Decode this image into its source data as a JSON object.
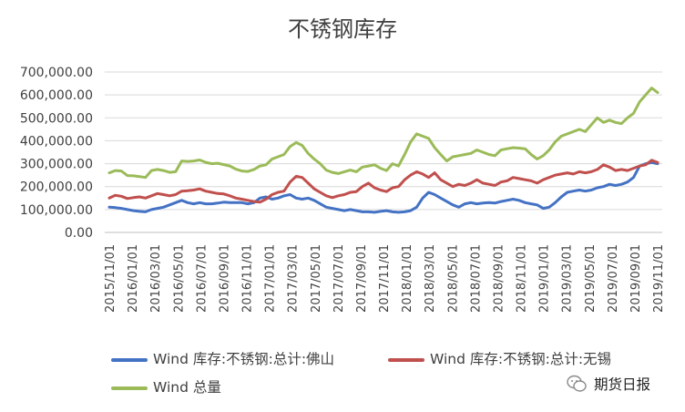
{
  "chart_data": {
    "type": "line",
    "title": "不锈钢库存",
    "xlabel": "",
    "ylabel": "",
    "ylim": [
      0,
      700000
    ],
    "y_ticks": [
      "0.00",
      "100,000.00",
      "200,000.00",
      "300,000.00",
      "400,000.00",
      "500,000.00",
      "600,000.00",
      "700,000.00"
    ],
    "x_tick_labels": [
      "2015/11/01",
      "2016/01/01",
      "2016/03/01",
      "2016/05/01",
      "2016/07/01",
      "2016/09/01",
      "2016/11/01",
      "2017/01/01",
      "2017/03/01",
      "2017/05/01",
      "2017/07/01",
      "2017/09/01",
      "2017/11/01",
      "2018/01/01",
      "2018/03/01",
      "2018/05/01",
      "2018/07/01",
      "2018/09/01",
      "2018/11/01",
      "2019/01/01",
      "2019/03/01",
      "2019/05/01",
      "2019/07/01",
      "2019/09/01",
      "2019/11/01"
    ],
    "grid": true,
    "legend_position": "bottom",
    "series": [
      {
        "name": "Wind 库存:不锈钢:总计:佛山",
        "color": "#4472C4",
        "values": [
          110000,
          108000,
          105000,
          100000,
          95000,
          92000,
          90000,
          100000,
          105000,
          110000,
          120000,
          130000,
          140000,
          130000,
          125000,
          130000,
          125000,
          125000,
          128000,
          132000,
          130000,
          130000,
          130000,
          125000,
          130000,
          150000,
          155000,
          145000,
          150000,
          160000,
          165000,
          150000,
          145000,
          150000,
          140000,
          125000,
          110000,
          105000,
          100000,
          95000,
          100000,
          95000,
          90000,
          90000,
          88000,
          92000,
          95000,
          90000,
          88000,
          90000,
          95000,
          110000,
          150000,
          175000,
          165000,
          150000,
          135000,
          120000,
          110000,
          125000,
          130000,
          125000,
          128000,
          130000,
          128000,
          135000,
          140000,
          145000,
          140000,
          130000,
          125000,
          120000,
          105000,
          110000,
          130000,
          155000,
          175000,
          180000,
          185000,
          180000,
          185000,
          195000,
          200000,
          210000,
          205000,
          210000,
          220000,
          240000,
          290000,
          300000,
          305000,
          300000
        ]
      },
      {
        "name": "Wind 库存:不锈钢:总计:无锡",
        "color": "#C0504D",
        "values": [
          150000,
          162000,
          158000,
          148000,
          152000,
          155000,
          150000,
          160000,
          170000,
          165000,
          160000,
          165000,
          180000,
          182000,
          185000,
          190000,
          180000,
          175000,
          170000,
          168000,
          160000,
          150000,
          145000,
          140000,
          135000,
          132000,
          145000,
          165000,
          175000,
          180000,
          220000,
          245000,
          240000,
          215000,
          190000,
          175000,
          160000,
          152000,
          160000,
          165000,
          175000,
          178000,
          200000,
          215000,
          195000,
          185000,
          178000,
          195000,
          200000,
          230000,
          250000,
          265000,
          255000,
          240000,
          260000,
          230000,
          215000,
          200000,
          210000,
          205000,
          215000,
          230000,
          215000,
          210000,
          205000,
          220000,
          225000,
          240000,
          235000,
          230000,
          225000,
          215000,
          230000,
          240000,
          250000,
          255000,
          260000,
          255000,
          265000,
          260000,
          265000,
          275000,
          295000,
          285000,
          270000,
          275000,
          270000,
          280000,
          290000,
          295000,
          315000,
          305000
        ]
      },
      {
        "name": "Wind 总量",
        "color": "#9BBB59",
        "values": [
          260000,
          270000,
          268000,
          248000,
          247000,
          244000,
          240000,
          270000,
          275000,
          270000,
          262000,
          265000,
          312000,
          310000,
          312000,
          316000,
          306000,
          300000,
          302000,
          296000,
          290000,
          276000,
          268000,
          266000,
          275000,
          290000,
          295000,
          320000,
          330000,
          340000,
          375000,
          392000,
          380000,
          345000,
          320000,
          300000,
          272000,
          262000,
          257000,
          265000,
          272000,
          265000,
          285000,
          290000,
          295000,
          280000,
          270000,
          300000,
          290000,
          340000,
          395000,
          430000,
          420000,
          410000,
          370000,
          340000,
          312000,
          330000,
          335000,
          340000,
          345000,
          360000,
          350000,
          340000,
          335000,
          360000,
          365000,
          370000,
          368000,
          365000,
          340000,
          320000,
          335000,
          360000,
          395000,
          420000,
          430000,
          440000,
          450000,
          440000,
          470000,
          500000,
          480000,
          490000,
          480000,
          475000,
          500000,
          520000,
          570000,
          600000,
          630000,
          610000
        ]
      }
    ]
  },
  "watermark": {
    "text": "期货日报",
    "icon": "wechat-icon"
  }
}
